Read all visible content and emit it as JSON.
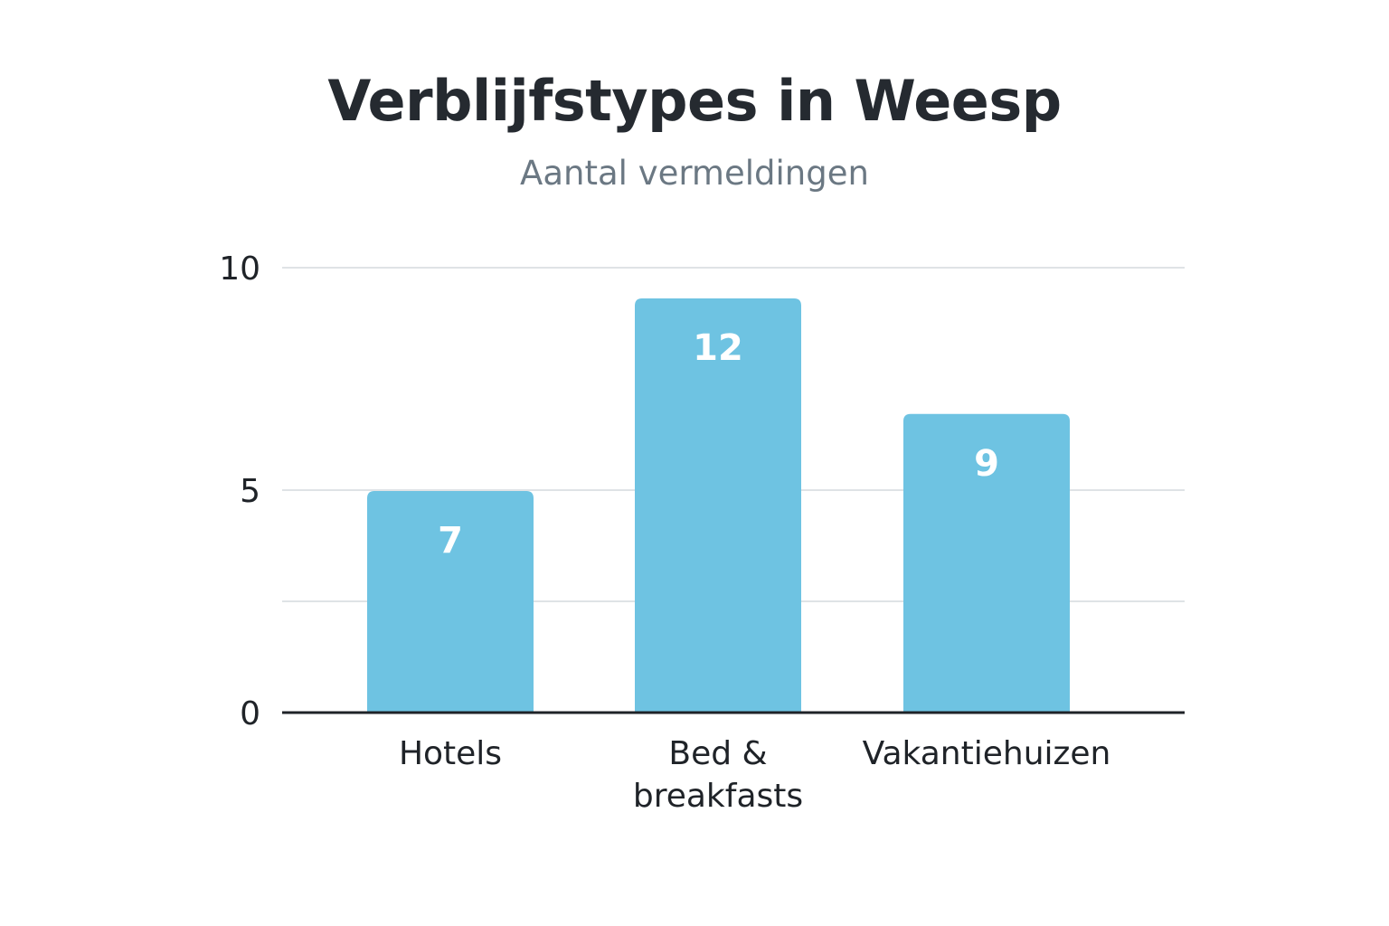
{
  "chart_data": {
    "type": "bar",
    "title": "Verblijfstypes in Weesp",
    "subtitle": "Aantal vermeldingen",
    "categories": [
      [
        "Hotels"
      ],
      [
        "Bed &",
        "breakfasts"
      ],
      [
        "Vakantiehuizen"
      ]
    ],
    "values": [
      7,
      12,
      9
    ],
    "data_labels": [
      "7",
      "12",
      "9"
    ],
    "y_ticks": [
      {
        "value": 0,
        "label": "0"
      },
      {
        "value": 5,
        "label": "5"
      },
      {
        "value": 10,
        "label": "10"
      }
    ],
    "gridlines": [
      2.5,
      5,
      10
    ],
    "ylim": [
      0,
      10
    ],
    "xlabel": "",
    "ylabel": "",
    "grid": true,
    "legend": "none",
    "colors": {
      "bar": "#6ec3e2",
      "grid": "#dfe3e6",
      "axis": "#1f2328"
    }
  }
}
